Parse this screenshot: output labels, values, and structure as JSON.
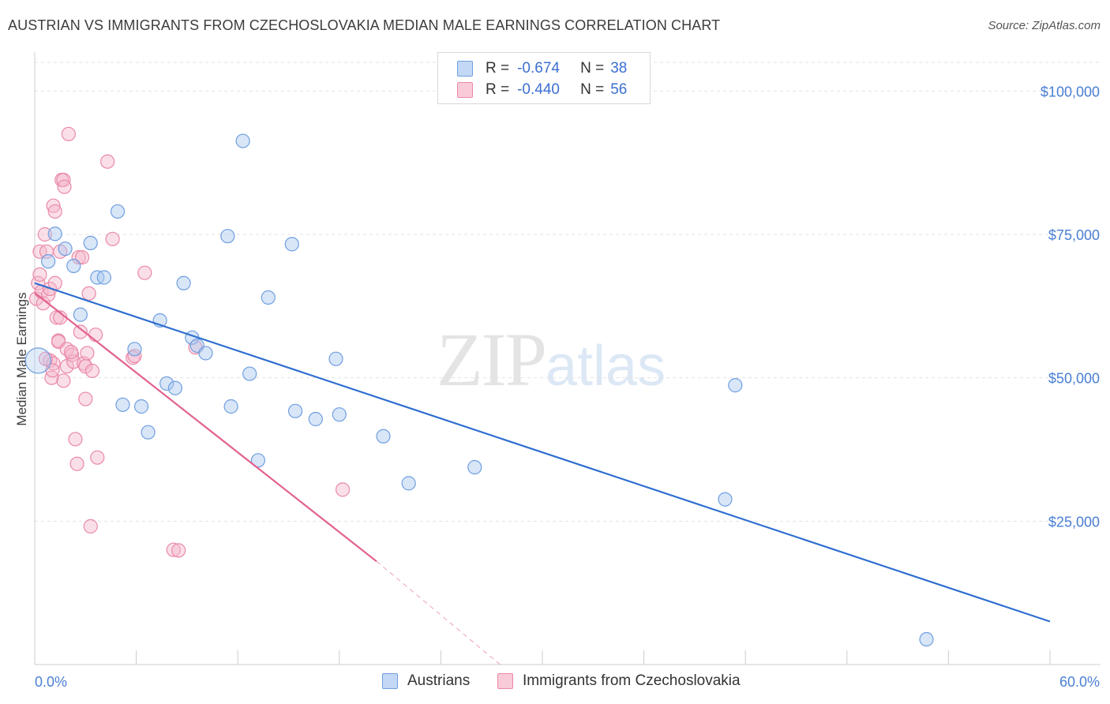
{
  "header": {
    "title": "AUSTRIAN VS IMMIGRANTS FROM CZECHOSLOVAKIA MEDIAN MALE EARNINGS CORRELATION CHART",
    "source": "Source: ZipAtlas.com"
  },
  "watermark": {
    "zip": "ZIP",
    "atlas": "atlas"
  },
  "legend": {
    "austrians": {
      "r_label": "R =",
      "r_value": "-0.674",
      "n_label": "N =",
      "n_value": "38"
    },
    "czech": {
      "r_label": "R =",
      "r_value": "-0.440",
      "n_label": "N =",
      "n_value": "56"
    }
  },
  "bottom_legend": {
    "austrians": "Austrians",
    "czech": "Immigrants from Czechoslovakia"
  },
  "colors": {
    "blue_fill": "#a9c8f0",
    "blue_stroke": "#6f9fe0",
    "blue_line": "#2f6fd0",
    "pink_fill": "#f5b8cb",
    "pink_stroke": "#ea89a8",
    "pink_line": "#e2628f",
    "grid": "#e2e2e2",
    "tick_text": "#4a7fd4"
  },
  "chart_data": {
    "type": "scatter",
    "title": "AUSTRIAN VS IMMIGRANTS FROM CZECHOSLOVAKIA MEDIAN MALE EARNINGS CORRELATION CHART",
    "xlabel": "",
    "ylabel": "Median Male Earnings",
    "xlim": [
      0,
      60
    ],
    "ylim": [
      0,
      105000
    ],
    "x_tick_labels": [
      "0.0%",
      "60.0%"
    ],
    "y_ticks": [
      25000,
      50000,
      75000,
      100000
    ],
    "y_tick_labels": [
      "$25,000",
      "$50,000",
      "$75,000",
      "$100,000"
    ],
    "grid": true,
    "legend_placement": "top-center",
    "series": [
      {
        "name": "Austrians",
        "trend": {
          "x": [
            0,
            60
          ],
          "y": [
            66500,
            7500
          ]
        },
        "points": [
          [
            0.2,
            53000
          ],
          [
            0.8,
            70300
          ],
          [
            1.2,
            75100
          ],
          [
            1.8,
            72500
          ],
          [
            2.3,
            69500
          ],
          [
            2.7,
            61000
          ],
          [
            3.3,
            73500
          ],
          [
            3.7,
            67500
          ],
          [
            4.1,
            67500
          ],
          [
            4.9,
            79000
          ],
          [
            5.2,
            45300
          ],
          [
            5.9,
            55000
          ],
          [
            6.3,
            45000
          ],
          [
            6.7,
            40500
          ],
          [
            7.4,
            60000
          ],
          [
            7.8,
            49000
          ],
          [
            8.3,
            48200
          ],
          [
            8.8,
            66500
          ],
          [
            9.3,
            57000
          ],
          [
            9.6,
            55600
          ],
          [
            10.1,
            54300
          ],
          [
            11.4,
            74700
          ],
          [
            11.6,
            45000
          ],
          [
            12.3,
            91300
          ],
          [
            12.7,
            50700
          ],
          [
            13.2,
            35600
          ],
          [
            13.8,
            64000
          ],
          [
            15.2,
            73300
          ],
          [
            15.4,
            44200
          ],
          [
            16.6,
            42800
          ],
          [
            17.8,
            53300
          ],
          [
            18.0,
            43600
          ],
          [
            20.6,
            39800
          ],
          [
            22.1,
            31600
          ],
          [
            26.0,
            34400
          ],
          [
            40.8,
            28800
          ],
          [
            41.4,
            48700
          ],
          [
            52.7,
            4400
          ]
        ]
      },
      {
        "name": "Immigrants from Czechoslovakia",
        "trend": {
          "x": [
            0,
            20.2
          ],
          "y": [
            64800,
            18000
          ],
          "dashed_to": {
            "x": 27.5,
            "y": 0
          }
        },
        "points": [
          [
            0.1,
            63800
          ],
          [
            0.2,
            66500
          ],
          [
            0.3,
            72000
          ],
          [
            0.3,
            68000
          ],
          [
            0.4,
            65000
          ],
          [
            0.5,
            63000
          ],
          [
            0.6,
            75000
          ],
          [
            0.7,
            72000
          ],
          [
            0.8,
            64500
          ],
          [
            0.9,
            65500
          ],
          [
            0.9,
            53000
          ],
          [
            1.0,
            50000
          ],
          [
            1.1,
            52500
          ],
          [
            1.1,
            80000
          ],
          [
            1.2,
            79000
          ],
          [
            1.2,
            66500
          ],
          [
            1.3,
            60500
          ],
          [
            1.4,
            56500
          ],
          [
            1.4,
            56300
          ],
          [
            1.5,
            60500
          ],
          [
            1.5,
            72000
          ],
          [
            1.6,
            84500
          ],
          [
            1.7,
            84500
          ],
          [
            1.7,
            49500
          ],
          [
            1.9,
            55000
          ],
          [
            1.9,
            52000
          ],
          [
            2.0,
            92500
          ],
          [
            2.2,
            54000
          ],
          [
            2.3,
            52800
          ],
          [
            2.4,
            39300
          ],
          [
            2.5,
            35000
          ],
          [
            2.6,
            71000
          ],
          [
            2.7,
            58000
          ],
          [
            2.8,
            71000
          ],
          [
            2.9,
            52500
          ],
          [
            3.0,
            46300
          ],
          [
            3.0,
            52000
          ],
          [
            3.1,
            54300
          ],
          [
            3.2,
            64700
          ],
          [
            3.3,
            24100
          ],
          [
            3.4,
            51200
          ],
          [
            3.6,
            57500
          ],
          [
            3.7,
            36100
          ],
          [
            4.3,
            87700
          ],
          [
            4.6,
            74200
          ],
          [
            5.8,
            53500
          ],
          [
            5.9,
            53800
          ],
          [
            6.5,
            68300
          ],
          [
            8.2,
            20000
          ],
          [
            8.5,
            19900
          ],
          [
            9.5,
            55300
          ],
          [
            18.2,
            30500
          ],
          [
            1.75,
            83300
          ],
          [
            2.15,
            54500
          ],
          [
            0.65,
            53300
          ],
          [
            1.05,
            51300
          ]
        ]
      }
    ]
  }
}
